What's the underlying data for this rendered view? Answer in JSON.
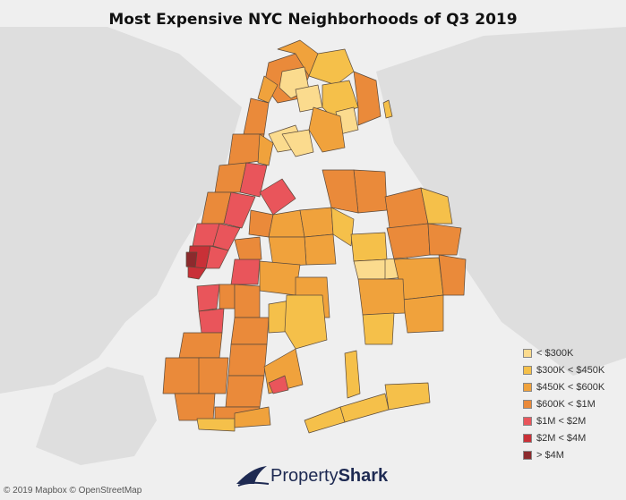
{
  "title": "Most Expensive NYC Neighborhoods of Q3 2019",
  "legend": {
    "items": [
      {
        "label": "< $300K",
        "color": "#fbdb8e"
      },
      {
        "label": "$300K < $450K",
        "color": "#f5c04a"
      },
      {
        "label": "$450K < $600K",
        "color": "#f0a23c"
      },
      {
        "label": "$600K < $1M",
        "color": "#ea8a3a"
      },
      {
        "label": "$1M < $2M",
        "color": "#e9555b"
      },
      {
        "label": "$2M < $4M",
        "color": "#c93037"
      },
      {
        "label": "> $4M",
        "color": "#8c2a2d"
      }
    ]
  },
  "attribution": "© 2019 Mapbox © OpenStreetMap",
  "brand": {
    "name_light": "Property",
    "name_bold": "Shark"
  },
  "colors": {
    "water": "#efefef",
    "land": "#dcdcdc",
    "border": "#5a4a3c"
  }
}
